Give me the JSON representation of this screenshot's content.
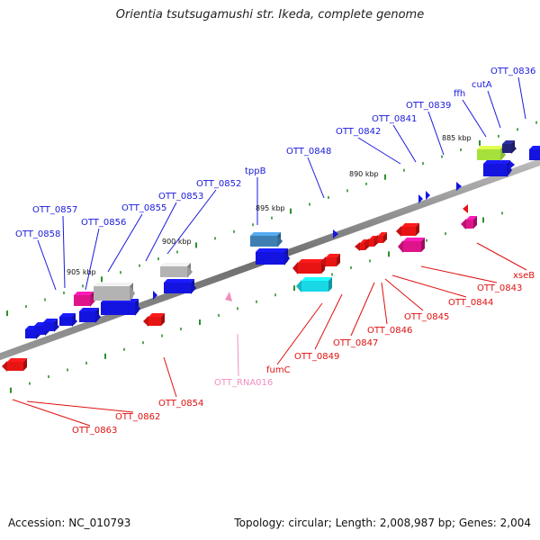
{
  "title": "Orientia tsutsugamushi str. Ikeda, complete genome",
  "footer": {
    "accession": "Accession: NC_010793",
    "summary": "Topology: circular; Length: 2,008,987 bp; Genes: 2,004"
  },
  "colors": {
    "forward_label": "#1a1adb",
    "reverse_label": "#e01010",
    "rna_label": "#f08ec0",
    "backbone": "#777777",
    "tick": "#2d8f2d"
  },
  "scale_labels": [
    "905 kbp",
    "900 kbp",
    "895 kbp",
    "890 kbp",
    "885 kbp"
  ],
  "forward_genes": [
    "OTT_0858",
    "OTT_0857",
    "OTT_0856",
    "OTT_0855",
    "OTT_0853",
    "OTT_0852",
    "tppB",
    "OTT_0848",
    "OTT_0842",
    "OTT_0841",
    "OTT_0839",
    "ffh",
    "cutA",
    "OTT_0836"
  ],
  "reverse_genes": [
    "OTT_0863",
    "OTT_0862",
    "OTT_0854",
    "OTT_RNA016",
    "fumC",
    "OTT_0849",
    "OTT_0847",
    "OTT_0846",
    "OTT_0845",
    "OTT_0844",
    "OTT_0843",
    "xseB"
  ]
}
